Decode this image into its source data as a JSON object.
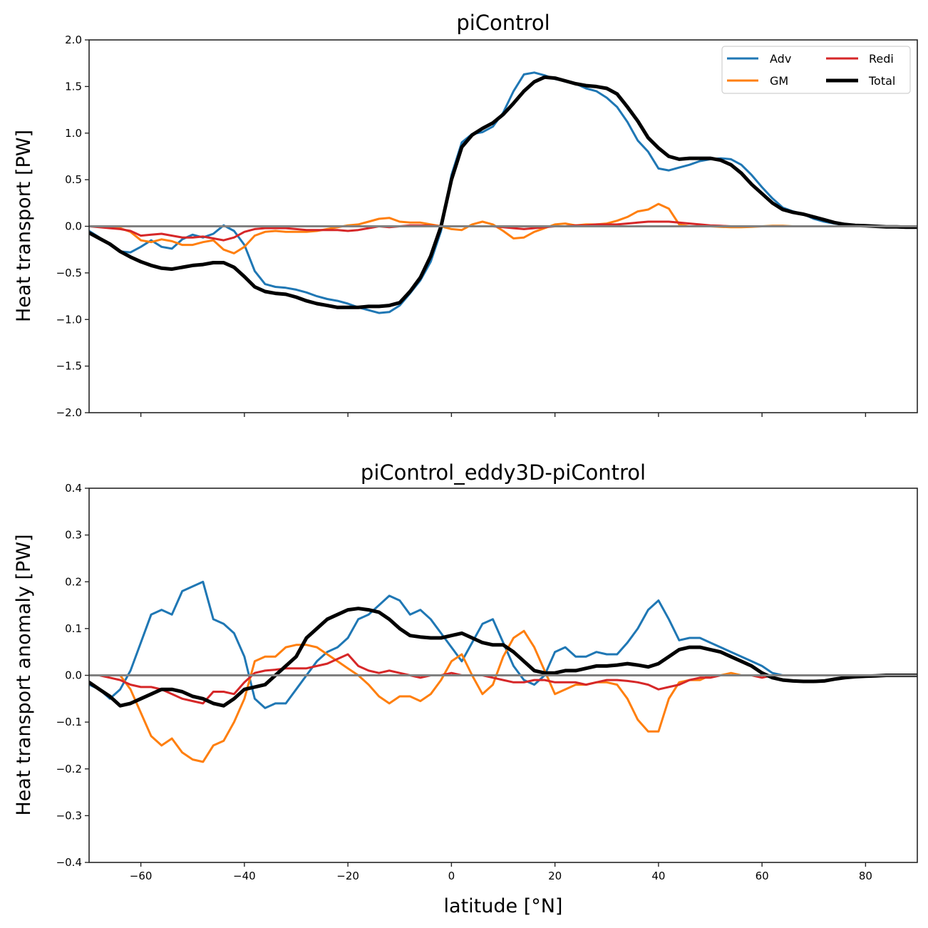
{
  "chart_data": [
    {
      "type": "line",
      "title": "piControl",
      "xlabel": "latitude [°N]",
      "ylabel": "Heat transport [PW]",
      "xlim": [
        -70,
        90
      ],
      "ylim": [
        -2.0,
        2.0
      ],
      "yticks": [
        -2.0,
        -1.5,
        -1.0,
        -0.5,
        0.0,
        0.5,
        1.0,
        1.5,
        2.0
      ],
      "ytick_labels": [
        "−2.0",
        "−1.5",
        "−1.0",
        "−0.5",
        "0.0",
        "0.5",
        "1.0",
        "1.5",
        "2.0"
      ],
      "xticks": [
        -60,
        -40,
        -20,
        0,
        20,
        40,
        60,
        80
      ],
      "xtick_labels": [],
      "grid": false,
      "legend": {
        "position": "top-right",
        "columns": 2,
        "entries": [
          "Adv",
          "GM",
          "Redi",
          "Total"
        ]
      },
      "reference_line": {
        "y": 0.0,
        "color": "#808080"
      },
      "x": [
        -70,
        -68,
        -66,
        -64,
        -62,
        -60,
        -58,
        -56,
        -54,
        -52,
        -50,
        -48,
        -46,
        -44,
        -42,
        -40,
        -38,
        -36,
        -34,
        -32,
        -30,
        -28,
        -26,
        -24,
        -22,
        -20,
        -18,
        -16,
        -14,
        -12,
        -10,
        -8,
        -6,
        -4,
        -2,
        0,
        2,
        4,
        6,
        8,
        10,
        12,
        14,
        16,
        18,
        20,
        22,
        24,
        26,
        28,
        30,
        32,
        34,
        36,
        38,
        40,
        42,
        44,
        46,
        48,
        50,
        52,
        54,
        56,
        58,
        60,
        62,
        64,
        66,
        68,
        70,
        72,
        74,
        76,
        78,
        80,
        82,
        84,
        86,
        88,
        90
      ],
      "series": [
        {
          "name": "Adv",
          "color": "#1f77b4",
          "width": 3,
          "values": [
            -0.05,
            -0.12,
            -0.2,
            -0.27,
            -0.28,
            -0.22,
            -0.15,
            -0.22,
            -0.24,
            -0.14,
            -0.09,
            -0.12,
            -0.08,
            0.01,
            -0.05,
            -0.2,
            -0.48,
            -0.62,
            -0.65,
            -0.66,
            -0.68,
            -0.71,
            -0.75,
            -0.78,
            -0.8,
            -0.83,
            -0.87,
            -0.9,
            -0.93,
            -0.92,
            -0.85,
            -0.72,
            -0.58,
            -0.38,
            -0.05,
            0.55,
            0.9,
            0.99,
            1.01,
            1.07,
            1.22,
            1.45,
            1.63,
            1.65,
            1.62,
            1.58,
            1.56,
            1.53,
            1.48,
            1.45,
            1.38,
            1.28,
            1.12,
            0.92,
            0.8,
            0.62,
            0.6,
            0.63,
            0.66,
            0.7,
            0.72,
            0.73,
            0.72,
            0.66,
            0.55,
            0.42,
            0.3,
            0.2,
            0.16,
            0.13,
            0.08,
            0.05,
            0.03,
            0.015,
            0.005,
            0.0,
            0.0,
            0.0,
            0.0,
            0.0,
            0.0
          ]
        },
        {
          "name": "GM",
          "color": "#ff7f0e",
          "width": 3,
          "values": [
            0.0,
            0.0,
            -0.01,
            -0.02,
            -0.06,
            -0.15,
            -0.17,
            -0.14,
            -0.16,
            -0.2,
            -0.2,
            -0.17,
            -0.15,
            -0.25,
            -0.29,
            -0.22,
            -0.1,
            -0.06,
            -0.05,
            -0.06,
            -0.06,
            -0.06,
            -0.05,
            -0.03,
            -0.01,
            0.01,
            0.02,
            0.05,
            0.08,
            0.09,
            0.05,
            0.04,
            0.04,
            0.02,
            0.0,
            -0.03,
            -0.04,
            0.02,
            0.05,
            0.02,
            -0.05,
            -0.13,
            -0.12,
            -0.06,
            -0.02,
            0.02,
            0.03,
            0.01,
            0.02,
            0.02,
            0.03,
            0.06,
            0.1,
            0.16,
            0.18,
            0.24,
            0.19,
            0.02,
            0.0,
            0.0,
            0.0,
            -0.005,
            -0.01,
            -0.01,
            -0.005,
            0.0,
            0.005,
            0.005,
            0.0,
            0.0,
            0.0,
            0.0,
            0.0,
            0.0,
            0.0,
            0.0,
            0.0,
            0.0,
            0.0,
            0.0,
            0.0
          ]
        },
        {
          "name": "Redi",
          "color": "#d62728",
          "width": 3,
          "values": [
            0.0,
            -0.01,
            -0.02,
            -0.03,
            -0.05,
            -0.1,
            -0.09,
            -0.08,
            -0.1,
            -0.12,
            -0.12,
            -0.11,
            -0.13,
            -0.15,
            -0.12,
            -0.06,
            -0.03,
            -0.02,
            -0.02,
            -0.02,
            -0.03,
            -0.04,
            -0.04,
            -0.04,
            -0.04,
            -0.05,
            -0.04,
            -0.02,
            0.0,
            -0.01,
            0.0,
            0.01,
            0.01,
            0.005,
            0.0,
            0.0,
            0.0,
            0.0,
            0.0,
            0.0,
            -0.01,
            -0.02,
            -0.03,
            -0.02,
            -0.01,
            0.0,
            0.0,
            0.01,
            0.01,
            0.02,
            0.02,
            0.02,
            0.03,
            0.04,
            0.05,
            0.05,
            0.05,
            0.04,
            0.03,
            0.02,
            0.01,
            0.005,
            0.0,
            0.0,
            0.0,
            0.0,
            0.0,
            0.0,
            0.0,
            0.0,
            0.0,
            0.0,
            0.0,
            0.0,
            0.0,
            0.0,
            0.0,
            0.0,
            0.0,
            0.0,
            0.0
          ]
        },
        {
          "name": "Total",
          "color": "#000000",
          "width": 5,
          "values": [
            -0.07,
            -0.13,
            -0.19,
            -0.27,
            -0.33,
            -0.38,
            -0.42,
            -0.45,
            -0.46,
            -0.44,
            -0.42,
            -0.41,
            -0.39,
            -0.39,
            -0.44,
            -0.54,
            -0.65,
            -0.7,
            -0.72,
            -0.73,
            -0.76,
            -0.8,
            -0.83,
            -0.85,
            -0.87,
            -0.87,
            -0.87,
            -0.86,
            -0.86,
            -0.85,
            -0.82,
            -0.7,
            -0.55,
            -0.32,
            0.0,
            0.5,
            0.85,
            0.98,
            1.05,
            1.11,
            1.2,
            1.32,
            1.45,
            1.55,
            1.6,
            1.59,
            1.56,
            1.53,
            1.51,
            1.5,
            1.48,
            1.42,
            1.28,
            1.13,
            0.95,
            0.84,
            0.75,
            0.72,
            0.73,
            0.73,
            0.73,
            0.71,
            0.66,
            0.57,
            0.45,
            0.35,
            0.25,
            0.18,
            0.15,
            0.13,
            0.1,
            0.07,
            0.04,
            0.02,
            0.01,
            0.005,
            0.0,
            -0.005,
            -0.005,
            -0.01,
            -0.01
          ]
        }
      ]
    },
    {
      "type": "line",
      "title": "piControl_eddy3D-piControl",
      "xlabel": "latitude [°N]",
      "ylabel": "Heat transport anomaly [PW]",
      "xlim": [
        -70,
        90
      ],
      "ylim": [
        -0.4,
        0.4
      ],
      "yticks": [
        -0.4,
        -0.3,
        -0.2,
        -0.1,
        0.0,
        0.1,
        0.2,
        0.3,
        0.4
      ],
      "ytick_labels": [
        "−0.4",
        "−0.3",
        "−0.2",
        "−0.1",
        "0.0",
        "0.1",
        "0.2",
        "0.3",
        "0.4"
      ],
      "xticks": [
        -60,
        -40,
        -20,
        0,
        20,
        40,
        60,
        80
      ],
      "xtick_labels": [
        "−60",
        "−40",
        "−20",
        "0",
        "20",
        "40",
        "60",
        "80"
      ],
      "grid": false,
      "reference_line": {
        "y": 0.0,
        "color": "#808080"
      },
      "x": [
        -70,
        -68,
        -66,
        -64,
        -62,
        -60,
        -58,
        -56,
        -54,
        -52,
        -50,
        -48,
        -46,
        -44,
        -42,
        -40,
        -38,
        -36,
        -34,
        -32,
        -30,
        -28,
        -26,
        -24,
        -22,
        -20,
        -18,
        -16,
        -14,
        -12,
        -10,
        -8,
        -6,
        -4,
        -2,
        0,
        2,
        4,
        6,
        8,
        10,
        12,
        14,
        16,
        18,
        20,
        22,
        24,
        26,
        28,
        30,
        32,
        34,
        36,
        38,
        40,
        42,
        44,
        46,
        48,
        50,
        52,
        54,
        56,
        58,
        60,
        62,
        64,
        66,
        68,
        70,
        72,
        74,
        76,
        78,
        80,
        82,
        84,
        86,
        88,
        90
      ],
      "series": [
        {
          "name": "Adv",
          "color": "#1f77b4",
          "width": 3,
          "values": [
            -0.02,
            -0.03,
            -0.05,
            -0.03,
            0.01,
            0.07,
            0.13,
            0.14,
            0.13,
            0.18,
            0.19,
            0.2,
            0.12,
            0.11,
            0.09,
            0.04,
            -0.05,
            -0.07,
            -0.06,
            -0.06,
            -0.03,
            0.0,
            0.03,
            0.05,
            0.06,
            0.08,
            0.12,
            0.13,
            0.15,
            0.17,
            0.16,
            0.13,
            0.14,
            0.12,
            0.09,
            0.06,
            0.03,
            0.07,
            0.11,
            0.12,
            0.07,
            0.02,
            -0.01,
            -0.02,
            0.0,
            0.05,
            0.06,
            0.04,
            0.04,
            0.05,
            0.045,
            0.045,
            0.07,
            0.1,
            0.14,
            0.16,
            0.12,
            0.075,
            0.08,
            0.08,
            0.07,
            0.06,
            0.05,
            0.04,
            0.03,
            0.02,
            0.005,
            0.0,
            0.0,
            0.0,
            0.0,
            0.0,
            0.0,
            0.0,
            0.0,
            0.0,
            0.0,
            0.0,
            0.0,
            0.0,
            0.0
          ]
        },
        {
          "name": "GM",
          "color": "#ff7f0e",
          "width": 3,
          "values": [
            0.0,
            0.0,
            0.0,
            0.0,
            -0.03,
            -0.08,
            -0.13,
            -0.15,
            -0.135,
            -0.165,
            -0.18,
            -0.185,
            -0.15,
            -0.14,
            -0.1,
            -0.05,
            0.03,
            0.04,
            0.04,
            0.06,
            0.065,
            0.065,
            0.06,
            0.045,
            0.03,
            0.015,
            0.0,
            -0.02,
            -0.045,
            -0.06,
            -0.045,
            -0.045,
            -0.055,
            -0.04,
            -0.01,
            0.03,
            0.045,
            0.0,
            -0.04,
            -0.02,
            0.04,
            0.08,
            0.095,
            0.06,
            0.01,
            -0.04,
            -0.03,
            -0.02,
            -0.02,
            -0.015,
            -0.015,
            -0.02,
            -0.05,
            -0.095,
            -0.12,
            -0.12,
            -0.05,
            -0.015,
            -0.01,
            -0.01,
            0.0,
            0.0,
            0.005,
            0.0,
            0.0,
            0.0,
            0.0,
            0.0,
            0.0,
            0.0,
            0.0,
            0.0,
            0.0,
            0.0,
            0.0,
            0.0,
            0.0,
            0.0,
            0.0,
            0.0,
            0.0
          ]
        },
        {
          "name": "Redi",
          "color": "#d62728",
          "width": 3,
          "values": [
            0.0,
            0.0,
            -0.005,
            -0.01,
            -0.02,
            -0.025,
            -0.025,
            -0.03,
            -0.04,
            -0.05,
            -0.055,
            -0.06,
            -0.035,
            -0.035,
            -0.04,
            -0.015,
            0.005,
            0.01,
            0.012,
            0.015,
            0.015,
            0.015,
            0.02,
            0.025,
            0.035,
            0.045,
            0.02,
            0.01,
            0.005,
            0.01,
            0.005,
            0.0,
            -0.005,
            0.0,
            0.0,
            0.005,
            0.0,
            0.0,
            0.0,
            -0.005,
            -0.01,
            -0.015,
            -0.015,
            -0.01,
            -0.01,
            -0.015,
            -0.015,
            -0.015,
            -0.02,
            -0.015,
            -0.01,
            -0.01,
            -0.012,
            -0.015,
            -0.02,
            -0.03,
            -0.025,
            -0.02,
            -0.01,
            -0.005,
            -0.005,
            0.0,
            0.0,
            0.0,
            0.0,
            -0.005,
            0.0,
            0.0,
            0.0,
            0.0,
            0.0,
            0.0,
            0.0,
            0.0,
            0.0,
            0.0,
            0.0,
            0.0,
            0.0,
            0.0,
            0.0
          ]
        },
        {
          "name": "Total",
          "color": "#000000",
          "width": 5,
          "values": [
            -0.015,
            -0.03,
            -0.045,
            -0.065,
            -0.06,
            -0.05,
            -0.04,
            -0.03,
            -0.03,
            -0.035,
            -0.045,
            -0.05,
            -0.06,
            -0.065,
            -0.05,
            -0.03,
            -0.025,
            -0.02,
            0.0,
            0.02,
            0.04,
            0.08,
            0.1,
            0.12,
            0.13,
            0.14,
            0.143,
            0.14,
            0.135,
            0.12,
            0.1,
            0.085,
            0.082,
            0.08,
            0.08,
            0.085,
            0.09,
            0.08,
            0.07,
            0.065,
            0.065,
            0.05,
            0.03,
            0.01,
            0.005,
            0.005,
            0.01,
            0.01,
            0.015,
            0.02,
            0.02,
            0.022,
            0.025,
            0.022,
            0.018,
            0.025,
            0.04,
            0.055,
            0.06,
            0.06,
            0.055,
            0.05,
            0.04,
            0.03,
            0.02,
            0.005,
            -0.005,
            -0.01,
            -0.012,
            -0.013,
            -0.013,
            -0.012,
            -0.008,
            -0.005,
            -0.003,
            -0.002,
            -0.001,
            0.0,
            0.0,
            0.0,
            0.0
          ]
        }
      ]
    }
  ]
}
